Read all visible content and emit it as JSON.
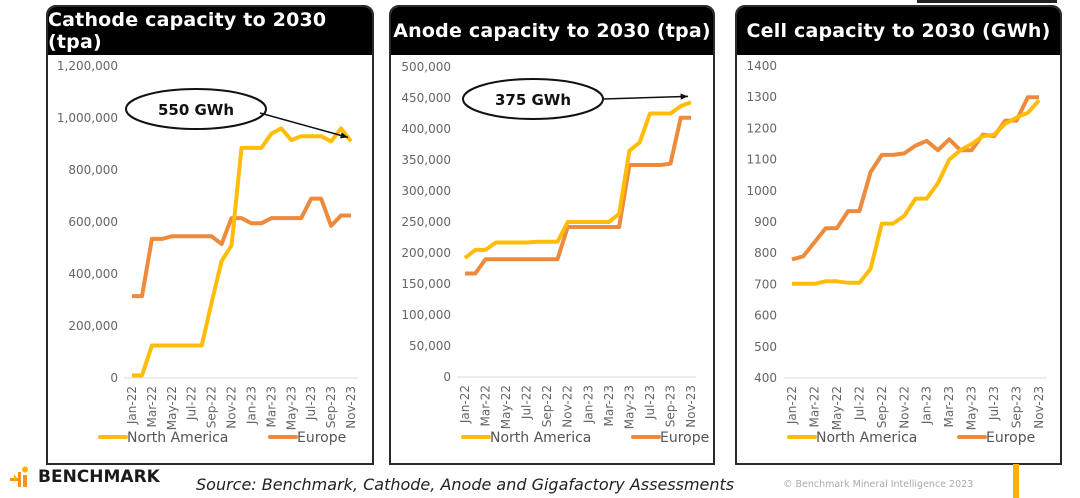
{
  "footer": {
    "brand": "BENCHMARK",
    "source": "Source: Benchmark, Cathode, Anode and Gigafactory Assessments",
    "copyright": "© Benchmark Mineral Intelligence 2023"
  },
  "colors": {
    "north_america": "#ffbd0a",
    "europe": "#ee8a3c",
    "title_bg": "#000000",
    "axis": "#d9d9d9",
    "tick_text": "#666666"
  },
  "chart_data": [
    {
      "type": "line",
      "title": "Cathode capacity to 2030 (tpa)",
      "xlabel": "",
      "ylabel": "",
      "ylim": [
        0,
        1200000
      ],
      "ytick_step": 200000,
      "yticks": [
        "0",
        "200,000",
        "400,000",
        "600,000",
        "800,000",
        "1,000,000",
        "1,200,000"
      ],
      "x": [
        "Jan-22",
        "Feb-22",
        "Mar-22",
        "Apr-22",
        "May-22",
        "Jun-22",
        "Jul-22",
        "Aug-22",
        "Sep-22",
        "Oct-22",
        "Nov-22",
        "Dec-22",
        "Jan-23",
        "Feb-23",
        "Mar-23",
        "Apr-23",
        "May-23",
        "Jun-23",
        "Jul-23",
        "Aug-23",
        "Sep-23",
        "Oct-23",
        "Nov-23"
      ],
      "xtick_labels": [
        "Jan-22",
        "Mar-22",
        "May-22",
        "Jul-22",
        "Sep-22",
        "Nov-22",
        "Jan-23",
        "Mar-23",
        "May-23",
        "Jul-23",
        "Sep-23",
        "Nov-23"
      ],
      "series": [
        {
          "name": "North America",
          "values": [
            10000,
            10000,
            125000,
            125000,
            125000,
            125000,
            125000,
            125000,
            290000,
            450000,
            510000,
            885000,
            885000,
            885000,
            940000,
            960000,
            915000,
            930000,
            930000,
            930000,
            910000,
            960000,
            910000
          ]
        },
        {
          "name": "Europe",
          "values": [
            315000,
            315000,
            535000,
            535000,
            545000,
            545000,
            545000,
            545000,
            545000,
            515000,
            615000,
            615000,
            595000,
            595000,
            615000,
            615000,
            615000,
            615000,
            690000,
            690000,
            585000,
            625000,
            625000
          ]
        }
      ],
      "legend": [
        "North America",
        "Europe"
      ],
      "legend_position": "bottom",
      "grid": false,
      "annotation": {
        "text": "550 GWh",
        "points_to": "North America Nov-23"
      }
    },
    {
      "type": "line",
      "title": "Anode capacity to 2030 (tpa)",
      "xlabel": "",
      "ylabel": "",
      "ylim": [
        0,
        500000
      ],
      "ytick_step": 50000,
      "yticks": [
        "0",
        "50,000",
        "100,000",
        "150,000",
        "200,000",
        "250,000",
        "300,000",
        "350,000",
        "400,000",
        "450,000",
        "500,000"
      ],
      "x": [
        "Jan-22",
        "Feb-22",
        "Mar-22",
        "Apr-22",
        "May-22",
        "Jun-22",
        "Jul-22",
        "Aug-22",
        "Sep-22",
        "Oct-22",
        "Nov-22",
        "Dec-22",
        "Jan-23",
        "Feb-23",
        "Mar-23",
        "Apr-23",
        "May-23",
        "Jun-23",
        "Jul-23",
        "Aug-23",
        "Sep-23",
        "Oct-23",
        "Nov-23"
      ],
      "xtick_labels": [
        "Jan-22",
        "Mar-22",
        "May-22",
        "Jul-22",
        "Sep-22",
        "Nov-22",
        "Jan-23",
        "Mar-23",
        "May-23",
        "Jul-23",
        "Sep-23",
        "Nov-23"
      ],
      "series": [
        {
          "name": "North America",
          "values": [
            192000,
            205000,
            205000,
            217000,
            217000,
            217000,
            217000,
            218000,
            218000,
            218000,
            250000,
            250000,
            250000,
            250000,
            250000,
            263000,
            365000,
            378000,
            425000,
            425000,
            425000,
            437000,
            443000
          ]
        },
        {
          "name": "Europe",
          "values": [
            167000,
            167000,
            190000,
            190000,
            190000,
            190000,
            190000,
            190000,
            190000,
            190000,
            242000,
            242000,
            242000,
            242000,
            242000,
            242000,
            342000,
            342000,
            342000,
            342000,
            344000,
            418000,
            418000
          ]
        }
      ],
      "legend": [
        "North America",
        "Europe"
      ],
      "legend_position": "bottom",
      "grid": false,
      "annotation": {
        "text": "375 GWh",
        "points_to": "North America Nov-23"
      }
    },
    {
      "type": "line",
      "title": "Cell capacity to 2030 (GWh)",
      "xlabel": "",
      "ylabel": "",
      "ylim": [
        400,
        1400
      ],
      "ytick_step": 100,
      "yticks": [
        "400",
        "500",
        "600",
        "700",
        "800",
        "900",
        "1000",
        "1100",
        "1200",
        "1300",
        "1400"
      ],
      "x": [
        "Jan-22",
        "Feb-22",
        "Mar-22",
        "Apr-22",
        "May-22",
        "Jun-22",
        "Jul-22",
        "Aug-22",
        "Sep-22",
        "Oct-22",
        "Nov-22",
        "Dec-22",
        "Jan-23",
        "Feb-23",
        "Mar-23",
        "Apr-23",
        "May-23",
        "Jun-23",
        "Jul-23",
        "Aug-23",
        "Sep-23",
        "Oct-23",
        "Nov-23"
      ],
      "xtick_labels": [
        "Jan-22",
        "Mar-22",
        "May-22",
        "Jul-22",
        "Sep-22",
        "Nov-22",
        "Jan-23",
        "Mar-23",
        "May-23",
        "Jul-23",
        "Sep-23",
        "Nov-23"
      ],
      "series": [
        {
          "name": "North America",
          "values": [
            702,
            702,
            702,
            710,
            710,
            705,
            705,
            750,
            895,
            895,
            920,
            975,
            975,
            1025,
            1100,
            1130,
            1150,
            1175,
            1180,
            1215,
            1235,
            1250,
            1290
          ]
        },
        {
          "name": "Europe",
          "values": [
            780,
            790,
            835,
            880,
            880,
            935,
            935,
            1060,
            1115,
            1115,
            1120,
            1145,
            1160,
            1130,
            1165,
            1130,
            1130,
            1180,
            1175,
            1225,
            1225,
            1300,
            1300
          ]
        }
      ],
      "legend": [
        "North America",
        "Europe"
      ],
      "legend_position": "bottom",
      "grid": false
    }
  ]
}
